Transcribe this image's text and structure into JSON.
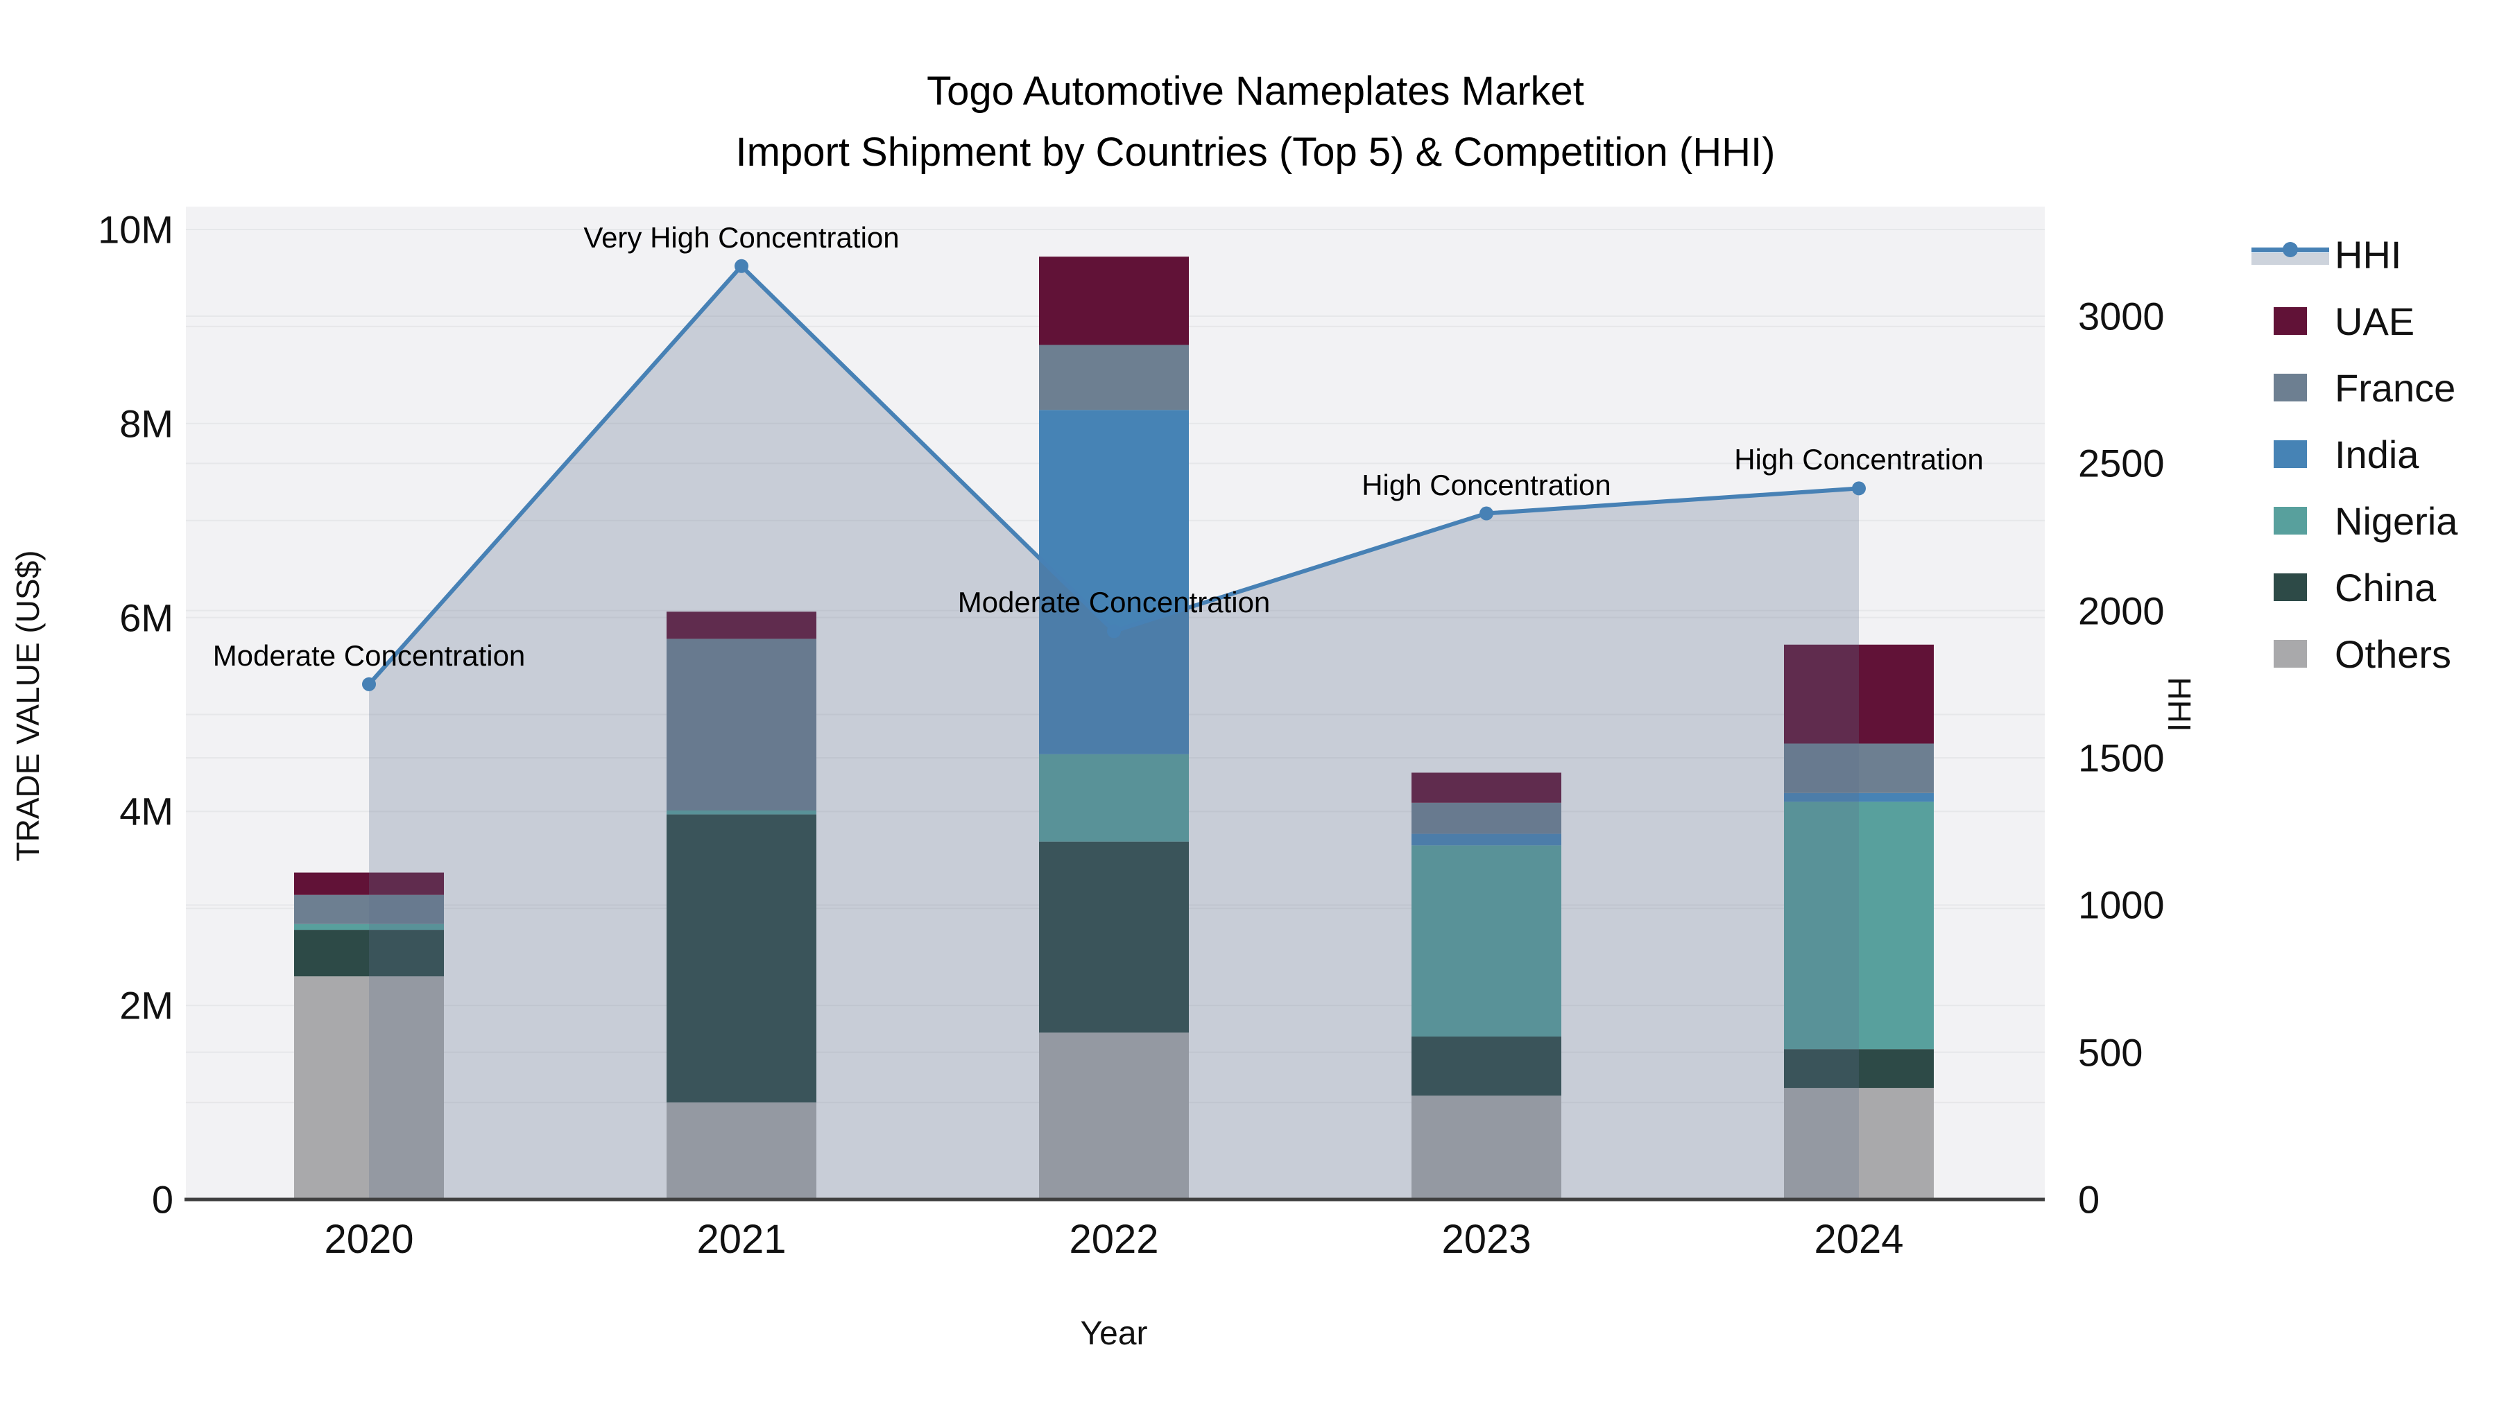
{
  "title": {
    "line1": "Togo Automotive Nameplates Market",
    "line2": "Import Shipment by Countries (Top 5) & Competition (HHI)"
  },
  "axes": {
    "y_left": {
      "label": "TRADE VALUE (US$)",
      "tick_labels": [
        "0",
        "2M",
        "4M",
        "6M",
        "8M",
        "10M"
      ],
      "tick_values_musd": [
        0,
        2,
        4,
        6,
        8,
        10
      ],
      "range_musd": [
        0,
        10.22
      ]
    },
    "y_right": {
      "label": "HHI",
      "tick_labels": [
        "0",
        "500",
        "1000",
        "1500",
        "2000",
        "2500",
        "3000"
      ],
      "tick_values": [
        0,
        500,
        1000,
        1500,
        2000,
        2500,
        3000
      ],
      "range": [
        0,
        3367
      ]
    },
    "x": {
      "label": "Year",
      "tick_labels": [
        "2020",
        "2021",
        "2022",
        "2023",
        "2024"
      ]
    }
  },
  "legend": {
    "position": "right",
    "items": [
      {
        "label": "HHI",
        "type": "line",
        "color": "#4781b5"
      },
      {
        "label": "UAE",
        "type": "box",
        "color": "#611237"
      },
      {
        "label": "France",
        "type": "box",
        "color": "#6d7f91"
      },
      {
        "label": "India",
        "type": "box",
        "color": "#4683b5"
      },
      {
        "label": "Nigeria",
        "type": "box",
        "color": "#58a09d"
      },
      {
        "label": "China",
        "type": "box",
        "color": "#2d4a47"
      },
      {
        "label": "Others",
        "type": "box",
        "color": "#a9a9ab"
      }
    ]
  },
  "chart_data": {
    "type": "combo-stacked-bar-with-area-line",
    "categories": [
      "2020",
      "2021",
      "2022",
      "2023",
      "2024"
    ],
    "bar_unit": "million US$",
    "bar_stack_order_bottom_to_top": [
      "Others",
      "China",
      "Nigeria",
      "India",
      "France",
      "UAE"
    ],
    "bar_series": [
      {
        "name": "Others",
        "color": "#a9a9ab",
        "values": [
          2.3,
          1.0,
          1.72,
          1.07,
          1.15
        ]
      },
      {
        "name": "China",
        "color": "#2d4a47",
        "values": [
          0.48,
          2.97,
          1.97,
          0.61,
          0.4
        ]
      },
      {
        "name": "Nigeria",
        "color": "#58a09d",
        "values": [
          0.06,
          0.04,
          0.9,
          1.97,
          2.55
        ]
      },
      {
        "name": "India",
        "color": "#4683b5",
        "values": [
          0.0,
          0.0,
          3.55,
          0.12,
          0.09
        ]
      },
      {
        "name": "France",
        "color": "#6d7f91",
        "values": [
          0.3,
          1.77,
          0.67,
          0.32,
          0.51
        ]
      },
      {
        "name": "UAE",
        "color": "#611237",
        "values": [
          0.23,
          0.28,
          0.91,
          0.31,
          1.02
        ]
      }
    ],
    "bar_totals_musd": [
      3.37,
      6.06,
      9.72,
      4.4,
      5.72
    ],
    "line_series": {
      "name": "HHI",
      "axis": "right",
      "color": "#4781b5",
      "area_fill": "rgba(92,110,141,0.28)",
      "values": [
        1750,
        3170,
        1930,
        2330,
        2415
      ]
    },
    "annotations": [
      {
        "year": "2020",
        "text": "Moderate Concentration"
      },
      {
        "year": "2021",
        "text": "Very High Concentration"
      },
      {
        "year": "2022",
        "text": "Moderate Concentration"
      },
      {
        "year": "2023",
        "text": "High Concentration"
      },
      {
        "year": "2024",
        "text": "High Concentration"
      }
    ],
    "layout_hints": {
      "plot_bg": "#f2f2f4",
      "grid_color": "#e6e7e9",
      "grid": "on",
      "baseline_color": "#3f3f3f",
      "legend_position": "right"
    }
  }
}
